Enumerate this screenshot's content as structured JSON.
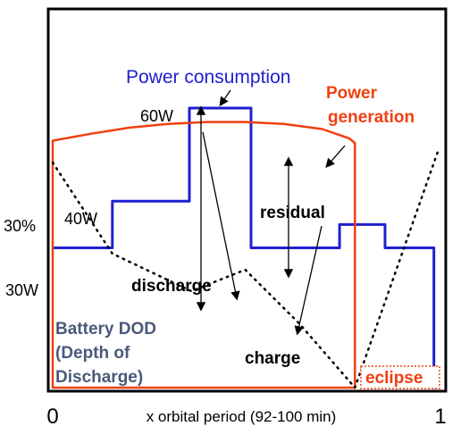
{
  "chart_data": {
    "type": "line",
    "xlabel": "x orbital period  (92-100 min)",
    "x_ticks": [
      "0",
      "1"
    ],
    "x_range": [
      0,
      1
    ],
    "power_ylabels": [
      {
        "text": "30W",
        "value": 30
      },
      {
        "text": "40W",
        "value": 40
      },
      {
        "text": "60W",
        "value": 60
      }
    ],
    "dod_ylabels": [
      {
        "text": "30%",
        "value": 30
      }
    ],
    "power_range": [
      0,
      65
    ],
    "series": [
      {
        "name": "Power consumption",
        "color": "#1f1fd0",
        "x": [
          0,
          0.155,
          0.155,
          0.355,
          0.355,
          0.515,
          0.515,
          0.745,
          0.745,
          0.863,
          0.863,
          0.99,
          0.99,
          1.0
        ],
        "y": [
          30,
          30,
          40,
          40,
          60,
          60,
          30,
          30,
          35,
          35,
          30,
          30,
          0,
          0
        ]
      },
      {
        "name": "Power generation",
        "color": "#f04010",
        "x": [
          0.0,
          0.0,
          0.1,
          0.2,
          0.3,
          0.4,
          0.5,
          0.6,
          0.7,
          0.77,
          0.785,
          0.785,
          0.0
        ],
        "y": [
          0,
          53,
          54.5,
          55.8,
          56.6,
          57.0,
          57.0,
          56.6,
          55.5,
          53.5,
          52.5,
          0,
          0
        ]
      },
      {
        "name": "Battery DOD",
        "color": "#000000",
        "x": [
          0.0,
          0.155,
          0.36,
          0.5,
          0.64,
          0.785,
          1.0
        ],
        "y": [
          42,
          25,
          18,
          22,
          12,
          0,
          44
        ]
      }
    ],
    "annotations": {
      "power_consumption": "Power consumption",
      "power_generation_1": "Power",
      "power_generation_2": "generation",
      "residual": "residual",
      "discharge": "discharge",
      "charge": "charge",
      "eclipse": "eclipse",
      "dod_1": "Battery DOD",
      "dod_2": "(Depth of",
      "dod_3": "Discharge)"
    },
    "colors": {
      "consumption": "#1f1fd0",
      "generation": "#f04010",
      "dod_label": "#4a5a7a",
      "eclipse_box": "#f04010"
    }
  }
}
